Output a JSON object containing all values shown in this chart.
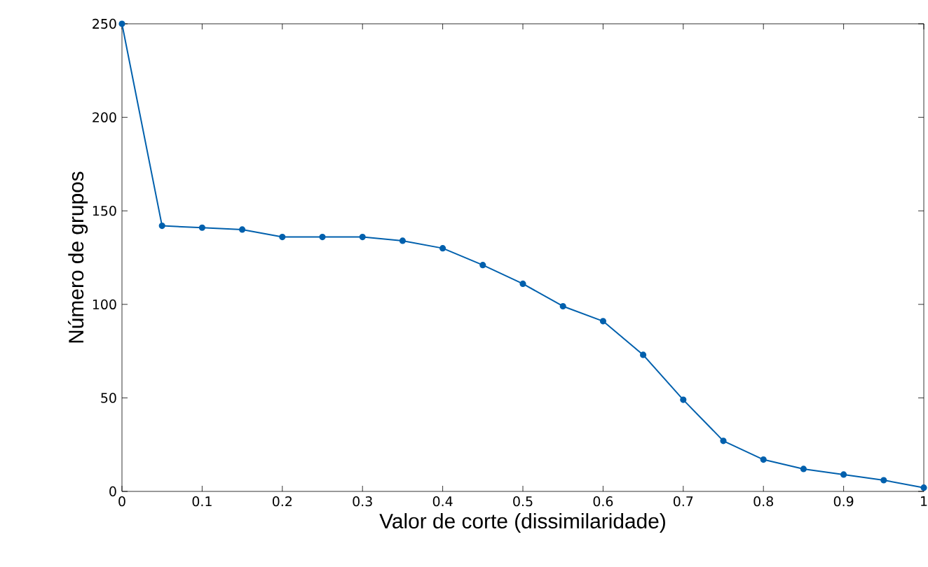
{
  "chart_data": {
    "type": "line",
    "xlabel": "Valor de corte (dissimilaridade)",
    "ylabel": "Número de grupos",
    "x": [
      0,
      0.05,
      0.1,
      0.15,
      0.2,
      0.25,
      0.3,
      0.35,
      0.4,
      0.45,
      0.5,
      0.55,
      0.6,
      0.65,
      0.7,
      0.75,
      0.8,
      0.85,
      0.9,
      0.95,
      1
    ],
    "series": [
      {
        "color": "#0060ad",
        "values": [
          250,
          142,
          141,
          140,
          136,
          136,
          136,
          134,
          130,
          121,
          111,
          99,
          91,
          73,
          49,
          27,
          17,
          12,
          9,
          6,
          2
        ]
      }
    ],
    "xlim": [
      0,
      1
    ],
    "xticks": [
      0,
      0.1,
      0.2,
      0.3,
      0.4,
      0.5,
      0.6,
      0.7,
      0.8,
      0.9,
      1
    ],
    "ylim": [
      0,
      250
    ],
    "yticks": [
      0,
      50,
      100,
      150,
      200,
      250
    ],
    "marker": "circle",
    "line_style": "solid"
  }
}
